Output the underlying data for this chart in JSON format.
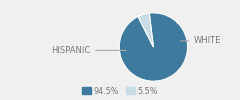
{
  "slices": [
    94.5,
    5.5
  ],
  "labels": [
    "HISPANIC",
    "WHITE"
  ],
  "colors": [
    "#3d7a9e",
    "#c8dce8"
  ],
  "legend_labels": [
    "94.5%",
    "5.5%"
  ],
  "startangle": 97,
  "background_color": "#f0f0f0",
  "label_color": "#777777",
  "label_fontsize": 6.0
}
